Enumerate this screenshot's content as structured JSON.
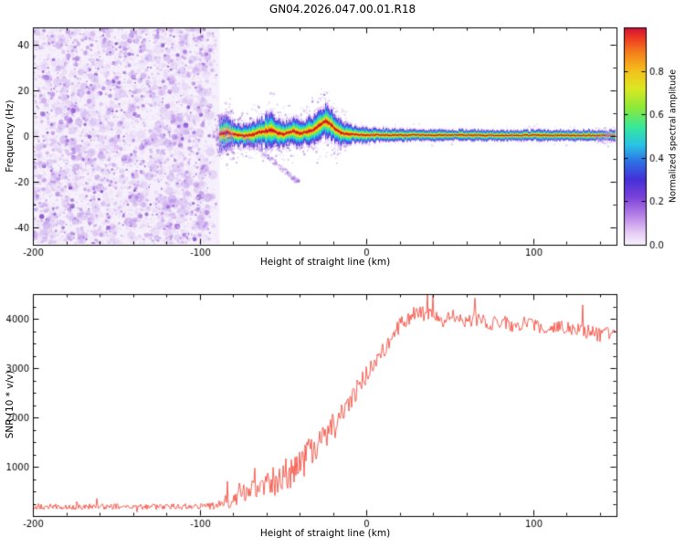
{
  "title": "GN04.2026.047.00.01.R18",
  "chart_data": [
    {
      "id": "spectrogram",
      "type": "heatmap",
      "title": "GN04.2026.047.00.01.R18",
      "xlabel": "Height of straight line (km)",
      "ylabel": "Frequency (Hz)",
      "xlim": [
        -200,
        150
      ],
      "ylim": [
        -47.5,
        47.5
      ],
      "xticks": [
        -200,
        -100,
        0,
        100
      ],
      "yticks": [
        -40,
        -20,
        0,
        20,
        40
      ],
      "x_minor_step": 20,
      "y_minor_step": 10,
      "grid": false,
      "colorbar": {
        "label": "Normalized spectral amplitude",
        "range": [
          0,
          1
        ],
        "ticks": [
          0.0,
          0.2,
          0.4,
          0.6,
          0.8
        ],
        "stops": [
          [
            0,
            "#f7f0fc"
          ],
          [
            0.05,
            "#e8d0f6"
          ],
          [
            0.13,
            "#bb86e8"
          ],
          [
            0.22,
            "#7a42d8"
          ],
          [
            0.3,
            "#4530d8"
          ],
          [
            0.38,
            "#2f6fe4"
          ],
          [
            0.46,
            "#2ac4e4"
          ],
          [
            0.54,
            "#36e89c"
          ],
          [
            0.63,
            "#8ce83a"
          ],
          [
            0.72,
            "#dce822"
          ],
          [
            0.8,
            "#f4c01c"
          ],
          [
            0.88,
            "#f4831c"
          ],
          [
            0.95,
            "#ee3b24"
          ],
          [
            1,
            "#cf0e38"
          ]
        ]
      },
      "noise_region": {
        "x_range": [
          -200,
          -88
        ],
        "description": "random low-amplitude speckle noise",
        "palette": [
          "#ecdcf8",
          "#d8bcf2",
          "#bb8ee8",
          "#9a60dc",
          "#7a38cc",
          "#5c22b0"
        ]
      },
      "signal_band": {
        "x_range": [
          -88,
          150
        ],
        "center_hz": [
          [
            -88,
            1.0
          ],
          [
            -84,
            1.5
          ],
          [
            -80,
            0.8
          ],
          [
            -76,
            0.3
          ],
          [
            -72,
            0.2
          ],
          [
            -68,
            0.8
          ],
          [
            -64,
            1.8
          ],
          [
            -60,
            2.2
          ],
          [
            -57,
            2.8
          ],
          [
            -54,
            1.5
          ],
          [
            -50,
            0.8
          ],
          [
            -47,
            1.5
          ],
          [
            -44,
            2.2
          ],
          [
            -40,
            1.2
          ],
          [
            -36,
            1.8
          ],
          [
            -32,
            2.5
          ],
          [
            -28,
            5.0
          ],
          [
            -25,
            6.5
          ],
          [
            -22,
            5.5
          ],
          [
            -19,
            3.0
          ],
          [
            -16,
            1.5
          ],
          [
            -12,
            1.0
          ],
          [
            -8,
            0.8
          ],
          [
            -4,
            0.6
          ],
          [
            0,
            0.5
          ],
          [
            20,
            0.4
          ],
          [
            150,
            0.3
          ]
        ],
        "half_width_hz": [
          [
            -88,
            7
          ],
          [
            -84,
            8
          ],
          [
            -80,
            5.5
          ],
          [
            -75,
            5
          ],
          [
            -70,
            5.5
          ],
          [
            -65,
            6
          ],
          [
            -60,
            7.5
          ],
          [
            -56,
            8
          ],
          [
            -52,
            6
          ],
          [
            -48,
            5.5
          ],
          [
            -44,
            6
          ],
          [
            -40,
            5.5
          ],
          [
            -36,
            6
          ],
          [
            -32,
            6.5
          ],
          [
            -28,
            7.5
          ],
          [
            -24,
            8
          ],
          [
            -20,
            7
          ],
          [
            -16,
            5.5
          ],
          [
            -12,
            4.5
          ],
          [
            -8,
            4
          ],
          [
            -4,
            3.8
          ],
          [
            0,
            3.5
          ],
          [
            10,
            3
          ],
          [
            30,
            2.6
          ],
          [
            150,
            2.4
          ]
        ],
        "layers": [
          [
            1.0,
            "#c9a0ec",
            0.45
          ],
          [
            0.82,
            "#5a35d9",
            0.9
          ],
          [
            0.66,
            "#2f7be8",
            0.95
          ],
          [
            0.52,
            "#2bcfe0",
            1
          ],
          [
            0.4,
            "#38e88e",
            1
          ],
          [
            0.3,
            "#a0e832",
            1
          ],
          [
            0.22,
            "#e8dc1e",
            1
          ],
          [
            0.15,
            "#f0a018",
            1
          ],
          [
            0.09,
            "#ea4a1e",
            1
          ],
          [
            0.05,
            "#c40e2e",
            1
          ]
        ],
        "descending_wisp_hz": [
          [
            -74,
            -1
          ],
          [
            -64,
            -6
          ],
          [
            -54,
            -12
          ],
          [
            -46,
            -17
          ],
          [
            -41,
            -20
          ]
        ]
      }
    },
    {
      "id": "snr",
      "type": "line",
      "xlabel": "Height of straight line (km)",
      "ylabel": "SNR (10 * v/v)",
      "xlim": [
        -200,
        150
      ],
      "ylim": [
        0,
        4500
      ],
      "xticks": [
        -200,
        -100,
        0,
        100
      ],
      "yticks": [
        1000,
        2000,
        3000,
        4000
      ],
      "x_minor_step": 20,
      "y_minor_step": 250,
      "grid": false,
      "series": [
        {
          "name": "SNR",
          "color": "#f23b2c",
          "anchors": [
            [
              -200,
              190
            ],
            [
              -180,
              195
            ],
            [
              -160,
              190
            ],
            [
              -140,
              195
            ],
            [
              -120,
              190
            ],
            [
              -105,
              195
            ],
            [
              -95,
              200
            ],
            [
              -90,
              215
            ],
            [
              -87,
              245
            ],
            [
              -84,
              330
            ],
            [
              -82,
              300
            ],
            [
              -80,
              420
            ],
            [
              -78,
              380
            ],
            [
              -76,
              500
            ],
            [
              -74,
              430
            ],
            [
              -72,
              520
            ],
            [
              -70,
              460
            ],
            [
              -68,
              560
            ],
            [
              -66,
              500
            ],
            [
              -64,
              600
            ],
            [
              -62,
              540
            ],
            [
              -60,
              650
            ],
            [
              -58,
              580
            ],
            [
              -56,
              720
            ],
            [
              -54,
              640
            ],
            [
              -52,
              800
            ],
            [
              -50,
              720
            ],
            [
              -48,
              900
            ],
            [
              -46,
              820
            ],
            [
              -44,
              1000
            ],
            [
              -42,
              950
            ],
            [
              -40,
              1100
            ],
            [
              -38,
              1050
            ],
            [
              -36,
              1250
            ],
            [
              -34,
              1200
            ],
            [
              -32,
              1400
            ],
            [
              -30,
              1350
            ],
            [
              -28,
              1550
            ],
            [
              -26,
              1500
            ],
            [
              -24,
              1700
            ],
            [
              -22,
              1650
            ],
            [
              -20,
              1850
            ],
            [
              -18,
              1800
            ],
            [
              -16,
              2000
            ],
            [
              -14,
              2100
            ],
            [
              -12,
              2200
            ],
            [
              -10,
              2350
            ],
            [
              -8,
              2450
            ],
            [
              -6,
              2550
            ],
            [
              -4,
              2650
            ],
            [
              -2,
              2750
            ],
            [
              0,
              2850
            ],
            [
              2,
              2950
            ],
            [
              4,
              3050
            ],
            [
              6,
              3150
            ],
            [
              8,
              3250
            ],
            [
              10,
              3350
            ],
            [
              12,
              3450
            ],
            [
              14,
              3550
            ],
            [
              16,
              3650
            ],
            [
              18,
              3750
            ],
            [
              20,
              3850
            ],
            [
              22,
              3950
            ],
            [
              25,
              4000
            ],
            [
              28,
              4080
            ],
            [
              30,
              4150
            ],
            [
              33,
              4080
            ],
            [
              36,
              4120
            ],
            [
              40,
              4060
            ],
            [
              45,
              4010
            ],
            [
              50,
              4060
            ],
            [
              55,
              4010
            ],
            [
              60,
              3960
            ],
            [
              65,
              4000
            ],
            [
              70,
              3950
            ],
            [
              75,
              3900
            ],
            [
              80,
              3950
            ],
            [
              85,
              3900
            ],
            [
              90,
              3860
            ],
            [
              95,
              3900
            ],
            [
              100,
              3850
            ],
            [
              105,
              3810
            ],
            [
              110,
              3850
            ],
            [
              115,
              3800
            ],
            [
              120,
              3850
            ],
            [
              125,
              3800
            ],
            [
              130,
              3760
            ],
            [
              135,
              3710
            ],
            [
              140,
              3660
            ],
            [
              145,
              3700
            ],
            [
              150,
              3740
            ]
          ],
          "noise_amp": [
            [
              -200,
              120
            ],
            [
              -95,
              120
            ],
            [
              -88,
              200
            ],
            [
              -80,
              360
            ],
            [
              -70,
              430
            ],
            [
              -60,
              500
            ],
            [
              -50,
              600
            ],
            [
              -40,
              650
            ],
            [
              -30,
              600
            ],
            [
              -20,
              550
            ],
            [
              -12,
              460
            ],
            [
              -5,
              400
            ],
            [
              0,
              380
            ],
            [
              10,
              350
            ],
            [
              20,
              320
            ],
            [
              30,
              300
            ],
            [
              50,
              280
            ],
            [
              80,
              280
            ],
            [
              120,
              300
            ],
            [
              150,
              300
            ]
          ]
        }
      ]
    }
  ]
}
